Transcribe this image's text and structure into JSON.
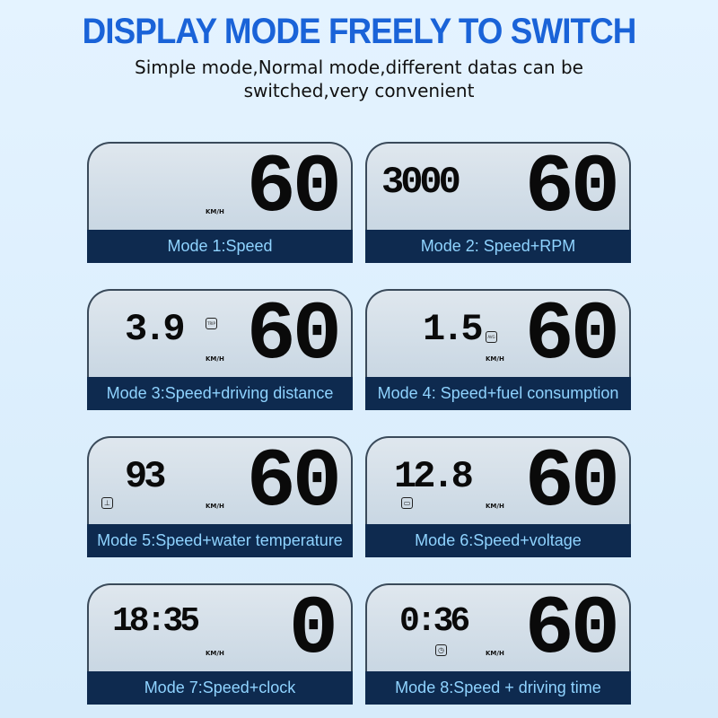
{
  "header": {
    "title": "DISPLAY MODE FREELY TO SWITCH",
    "subtitle": "Simple mode,Normal mode,different datas can be switched,very convenient"
  },
  "modes": [
    {
      "label": "Mode 1:Speed",
      "speed": "60",
      "secondary": "",
      "unit": "KM/H",
      "icon": ""
    },
    {
      "label": "Mode 2: Speed+RPM",
      "speed": "60",
      "secondary": "3000",
      "unit": "",
      "icon": ""
    },
    {
      "label": "Mode 3:Speed+driving distance",
      "speed": "60",
      "secondary": "3.9",
      "unit": "KM/H",
      "icon": "trip-icon",
      "icon_text": "TRIP"
    },
    {
      "label": "Mode 4: Speed+fuel consumption",
      "speed": "60",
      "secondary": "1.5",
      "unit": "KM/H",
      "icon": "avg-icon",
      "icon_text": "AVG"
    },
    {
      "label": "Mode 5:Speed+water temperature",
      "speed": "60",
      "secondary": "93",
      "unit": "KM/H",
      "icon": "thermometer-icon"
    },
    {
      "label": "Mode 6:Speed+voltage",
      "speed": "60",
      "secondary": "12.8",
      "unit": "KM/H",
      "icon": "battery-icon"
    },
    {
      "label": "Mode 7:Speed+clock",
      "speed": "0",
      "secondary": "18:35",
      "unit": "KM/H",
      "icon": ""
    },
    {
      "label": "Mode 8:Speed + driving time",
      "speed": "60",
      "secondary": "0:36",
      "unit": "KM/H",
      "icon": "timer-icon"
    }
  ]
}
